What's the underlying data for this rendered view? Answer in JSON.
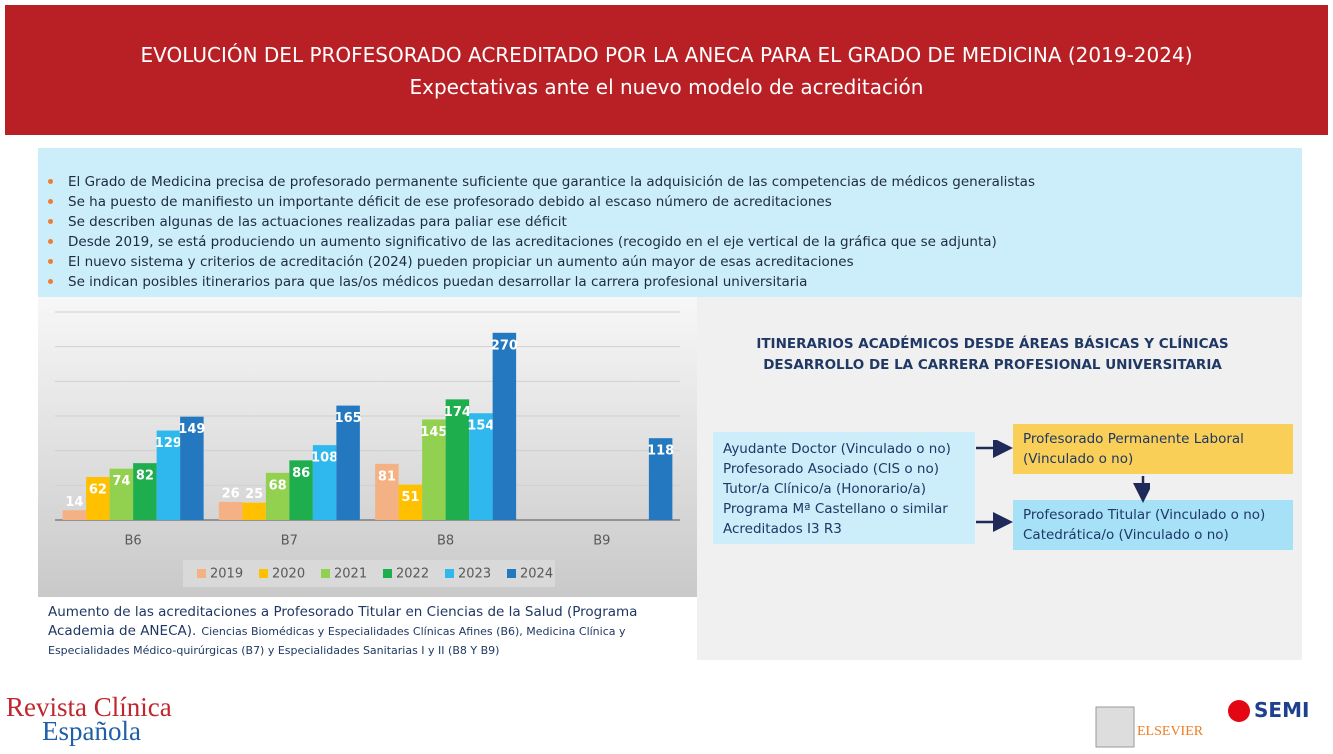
{
  "header": {
    "title": "EVOLUCIÓN DEL PROFESORADO ACREDITADO POR LA ANECA PARA EL GRADO DE MEDICINA (2019-2024)",
    "subtitle": "Expectativas ante el nuevo modelo de acreditación"
  },
  "bullets": [
    "El Grado de Medicina precisa de profesorado permanente suficiente que garantice la adquisición de las competencias de médicos generalistas",
    "Se ha puesto de manifiesto un importante déficit de ese profesorado debido al escaso número de acreditaciones",
    "Se describen algunas de las actuaciones realizadas para paliar ese déficit",
    "Desde 2019, se está produciendo un aumento significativo de las acreditaciones (recogido en el eje vertical de la gráfica que se adjunta)",
    "El nuevo sistema y criterios de acreditación (2024) pueden propiciar un aumento aún mayor de esas acreditaciones",
    "Se indican posibles itinerarios para que las/os médicos puedan desarrollar la carrera profesional universitaria"
  ],
  "chart_data": {
    "type": "bar",
    "categories": [
      "B6",
      "B7",
      "B8",
      "B9"
    ],
    "series": [
      {
        "name": "2019",
        "color": "#f4b183",
        "values": [
          14,
          26,
          81,
          null
        ]
      },
      {
        "name": "2020",
        "color": "#ffc000",
        "values": [
          62,
          25,
          51,
          null
        ]
      },
      {
        "name": "2021",
        "color": "#92d050",
        "values": [
          74,
          68,
          145,
          null
        ]
      },
      {
        "name": "2022",
        "color": "#1fae4e",
        "values": [
          82,
          86,
          174,
          null
        ]
      },
      {
        "name": "2023",
        "color": "#2fb8ee",
        "values": [
          129,
          108,
          154,
          null
        ]
      },
      {
        "name": "2024",
        "color": "#2478c0",
        "values": [
          149,
          165,
          270,
          118
        ]
      }
    ],
    "ylim": [
      0,
      300
    ],
    "yticks": [
      0,
      50,
      100,
      150,
      200,
      250,
      300
    ],
    "grid": true,
    "legend": "bottom"
  },
  "caption": {
    "main": "Aumento de las acreditaciones a Profesorado Titular en Ciencias de la Salud (Programa Academia de ANECA).",
    "detail": "Ciencias Biomédicas y Especialidades Clínicas Afines (B6), Medicina Clínica y Especialidades Médico-quirúrgicas (B7) y Especialidades Sanitarias I y II (B8 Y B9)"
  },
  "itineraries": {
    "title": "ITINERARIOS ACADÉMICOS DESDE ÁREAS BÁSICAS Y CLÍNICAS DESARROLLO DE LA CARRERA PROFESIONAL UNIVERSITARIA",
    "sources": [
      "Ayudante Doctor (Vinculado o no)",
      "Profesorado Asociado (CIS o no)",
      "Tutor/a Clínico/a (Honorario/a)",
      "Programa Mª Castellano o similar",
      "Acreditados I3 R3"
    ],
    "laboral": "Profesorado Permanente Laboral (Vinculado o no)",
    "titular": [
      "Profesorado Titular (Vinculado o no)",
      "Catedrática/o (Vinculado o no)"
    ]
  },
  "footer": {
    "journal": [
      "Revista Clínica",
      "Española"
    ],
    "publisher": "ELSEVIER",
    "society": "SEMI"
  }
}
